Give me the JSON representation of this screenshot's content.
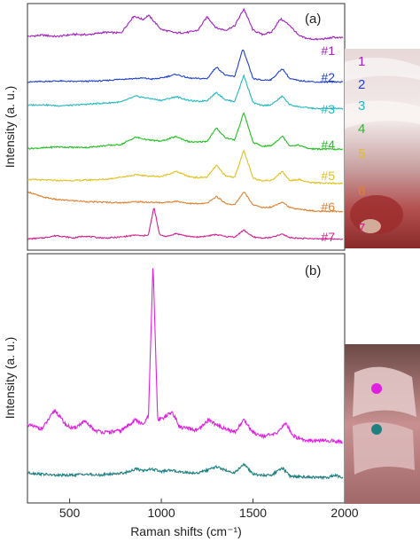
{
  "chart_data": [
    {
      "panel": "(a)",
      "type": "line",
      "ylabel": "Intensity (a. u.)",
      "xlim": [
        270,
        2000
      ],
      "y_ticks_shown": false,
      "series": [
        {
          "name": "#1",
          "color": "#a020c0",
          "x": [
            270,
            350,
            430,
            520,
            600,
            690,
            780,
            850,
            900,
            930,
            1000,
            1080,
            1150,
            1200,
            1250,
            1300,
            1350,
            1400,
            1450,
            1500,
            1550,
            1600,
            1650,
            1700,
            1750,
            1800,
            1850,
            1900,
            1940,
            1990
          ],
          "y": [
            0.12,
            0.16,
            0.12,
            0.18,
            0.17,
            0.24,
            0.22,
            0.7,
            0.6,
            0.72,
            0.32,
            0.22,
            0.24,
            0.3,
            0.68,
            0.36,
            0.3,
            0.42,
            0.9,
            0.3,
            0.18,
            0.24,
            0.62,
            0.44,
            0.14,
            0.06,
            0.04,
            0.06,
            0.1,
            0.08
          ]
        },
        {
          "name": "#2",
          "color": "#2040d0",
          "x": [
            270,
            350,
            430,
            520,
            600,
            690,
            780,
            850,
            900,
            950,
            1000,
            1080,
            1150,
            1200,
            1250,
            1300,
            1350,
            1400,
            1445,
            1500,
            1550,
            1600,
            1660,
            1700,
            1750,
            1800,
            1850,
            1900,
            1940,
            1990
          ],
          "y": [
            0.05,
            0.07,
            0.09,
            0.07,
            0.08,
            0.1,
            0.16,
            0.18,
            0.2,
            0.16,
            0.2,
            0.34,
            0.2,
            0.18,
            0.18,
            0.62,
            0.3,
            0.26,
            1.3,
            0.18,
            0.12,
            0.14,
            0.56,
            0.18,
            0.1,
            0.08,
            0.05,
            0.05,
            0.06,
            0.05
          ]
        },
        {
          "name": "#3",
          "color": "#20b8c0",
          "x": [
            270,
            350,
            430,
            520,
            600,
            690,
            780,
            860,
            930,
            1000,
            1080,
            1150,
            1200,
            1250,
            1300,
            1350,
            1400,
            1450,
            1500,
            1550,
            1600,
            1660,
            1700,
            1750,
            1800,
            1850,
            1900,
            1940,
            1990
          ],
          "y": [
            0.18,
            0.2,
            0.16,
            0.18,
            0.22,
            0.26,
            0.3,
            0.52,
            0.44,
            0.36,
            0.5,
            0.36,
            0.32,
            0.36,
            0.66,
            0.38,
            0.32,
            1.3,
            0.28,
            0.16,
            0.2,
            0.52,
            0.2,
            0.12,
            0.08,
            0.05,
            0.05,
            0.06,
            0.04
          ]
        },
        {
          "name": "#4",
          "color": "#20c020",
          "x": [
            270,
            350,
            430,
            520,
            600,
            690,
            780,
            860,
            930,
            1000,
            1080,
            1150,
            1200,
            1250,
            1300,
            1350,
            1400,
            1450,
            1500,
            1550,
            1600,
            1660,
            1700,
            1750,
            1800,
            1850,
            1900,
            1940,
            1990
          ],
          "y": [
            0.08,
            0.1,
            0.14,
            0.12,
            0.12,
            0.18,
            0.22,
            0.48,
            0.38,
            0.34,
            0.5,
            0.32,
            0.3,
            0.34,
            0.8,
            0.46,
            0.38,
            1.35,
            0.3,
            0.16,
            0.18,
            0.52,
            0.18,
            0.2,
            0.08,
            0.06,
            0.06,
            0.05,
            0.05
          ]
        },
        {
          "name": "#5",
          "color": "#e0c020",
          "x": [
            270,
            350,
            430,
            520,
            600,
            690,
            780,
            860,
            930,
            1000,
            1080,
            1150,
            1200,
            1250,
            1300,
            1350,
            1400,
            1450,
            1500,
            1550,
            1600,
            1660,
            1700,
            1750,
            1800,
            1850,
            1900,
            1940,
            1990
          ],
          "y": [
            0.18,
            0.16,
            0.14,
            0.14,
            0.16,
            0.18,
            0.26,
            0.34,
            0.3,
            0.28,
            0.46,
            0.28,
            0.24,
            0.26,
            0.68,
            0.3,
            0.26,
            1.2,
            0.22,
            0.14,
            0.14,
            0.46,
            0.14,
            0.18,
            0.08,
            0.06,
            0.04,
            0.04,
            0.04
          ]
        },
        {
          "name": "#6",
          "color": "#e08030",
          "x": [
            270,
            350,
            430,
            520,
            600,
            690,
            780,
            860,
            930,
            1000,
            1080,
            1150,
            1200,
            1250,
            1300,
            1350,
            1400,
            1450,
            1500,
            1550,
            1600,
            1660,
            1700,
            1750,
            1800,
            1850,
            1900,
            1940,
            1990
          ],
          "y": [
            0.8,
            0.6,
            0.5,
            0.46,
            0.42,
            0.4,
            0.38,
            0.42,
            0.4,
            0.38,
            0.44,
            0.36,
            0.34,
            0.36,
            0.62,
            0.36,
            0.3,
            0.8,
            0.3,
            0.2,
            0.22,
            0.42,
            0.2,
            0.14,
            0.1,
            0.06,
            0.05,
            0.06,
            0.05
          ]
        },
        {
          "name": "#7",
          "color": "#d02090",
          "x": [
            270,
            350,
            430,
            520,
            580,
            650,
            700,
            780,
            860,
            900,
            930,
            960,
            990,
            1030,
            1080,
            1150,
            1200,
            1250,
            1300,
            1350,
            1400,
            1450,
            1500,
            1550,
            1600,
            1660,
            1700,
            1750,
            1800,
            1850,
            1900,
            1940,
            1990
          ],
          "y": [
            0.02,
            0.06,
            0.16,
            0.06,
            0.14,
            0.08,
            0.06,
            0.1,
            0.18,
            0.14,
            0.2,
            1.3,
            0.2,
            0.12,
            0.24,
            0.12,
            0.1,
            0.14,
            0.2,
            0.12,
            0.1,
            0.38,
            0.1,
            0.06,
            0.08,
            0.22,
            0.08,
            0.05,
            0.04,
            0.03,
            0.02,
            0.02,
            0.02
          ]
        }
      ],
      "photo_labels": [
        {
          "text": "1",
          "color": "#a020c0"
        },
        {
          "text": "2",
          "color": "#2040d0"
        },
        {
          "text": "3",
          "color": "#20b8c0"
        },
        {
          "text": "4",
          "color": "#20c020"
        },
        {
          "text": "5",
          "color": "#e0c020"
        },
        {
          "text": "6",
          "color": "#e08030"
        },
        {
          "text": "7",
          "color": "#d02090"
        }
      ]
    },
    {
      "panel": "(b)",
      "type": "line",
      "xlabel": "Raman shifts (cm⁻¹)",
      "ylabel": "Intensity (a. u.)",
      "xlim": [
        270,
        2000
      ],
      "x_ticks": [
        500,
        1000,
        1500,
        2000
      ],
      "y_ticks_shown": false,
      "series": [
        {
          "color": "#e020e0",
          "x": [
            270,
            350,
            420,
            480,
            520,
            580,
            640,
            700,
            780,
            860,
            900,
            930,
            955,
            980,
            1010,
            1060,
            1100,
            1150,
            1200,
            1260,
            1300,
            1350,
            1400,
            1450,
            1500,
            1560,
            1620,
            1680,
            1720,
            1780,
            1850,
            1920,
            1990
          ],
          "y": [
            0.2,
            0.16,
            0.36,
            0.2,
            0.16,
            0.24,
            0.14,
            0.12,
            0.14,
            0.26,
            0.2,
            0.3,
            1.95,
            0.26,
            0.28,
            0.34,
            0.18,
            0.16,
            0.14,
            0.26,
            0.2,
            0.16,
            0.12,
            0.26,
            0.12,
            0.08,
            0.1,
            0.22,
            0.08,
            0.04,
            0.03,
            0.03,
            0.02
          ]
        },
        {
          "color": "#208080",
          "x": [
            270,
            350,
            420,
            500,
            580,
            650,
            720,
            800,
            860,
            900,
            950,
            1000,
            1050,
            1100,
            1150,
            1200,
            1250,
            1300,
            1350,
            1400,
            1450,
            1500,
            1550,
            1600,
            1660,
            1700,
            1750,
            1800,
            1850,
            1900,
            1950,
            1990
          ],
          "y": [
            0.1,
            0.08,
            0.06,
            0.06,
            0.08,
            0.06,
            0.08,
            0.1,
            0.16,
            0.14,
            0.16,
            0.12,
            0.14,
            0.12,
            0.1,
            0.1,
            0.14,
            0.2,
            0.14,
            0.1,
            0.24,
            0.08,
            0.06,
            0.06,
            0.18,
            0.05,
            0.04,
            0.03,
            0.03,
            0.02,
            0.06,
            0.02
          ]
        }
      ]
    }
  ]
}
